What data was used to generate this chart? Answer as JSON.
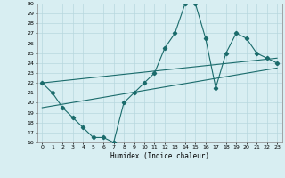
{
  "xlabel": "Humidex (Indice chaleur)",
  "bg_color": "#d8eef2",
  "line_color": "#1a6b6b",
  "grid_color": "#b8d8de",
  "xlim": [
    -0.5,
    23.5
  ],
  "ylim": [
    16,
    30
  ],
  "xticks": [
    0,
    1,
    2,
    3,
    4,
    5,
    6,
    7,
    8,
    9,
    10,
    11,
    12,
    13,
    14,
    15,
    16,
    17,
    18,
    19,
    20,
    21,
    22,
    23
  ],
  "yticks": [
    16,
    17,
    18,
    19,
    20,
    21,
    22,
    23,
    24,
    25,
    26,
    27,
    28,
    29,
    30
  ],
  "series1_x": [
    0,
    1,
    2,
    3,
    4,
    5,
    6,
    7,
    8,
    9,
    10,
    11,
    12,
    13,
    14,
    15,
    16,
    17,
    18,
    19,
    20,
    21,
    22,
    23
  ],
  "series1_y": [
    22,
    21,
    19.5,
    18.5,
    17.5,
    16.5,
    16.5,
    16,
    20,
    21,
    22,
    23,
    25.5,
    27,
    30,
    30,
    26.5,
    21.5,
    25,
    27,
    26.5,
    25,
    24.5,
    24
  ],
  "series2_x": [
    0,
    23
  ],
  "series2_y": [
    22,
    24.5
  ],
  "series3_x": [
    0,
    23
  ],
  "series3_y": [
    19.5,
    23.5
  ]
}
